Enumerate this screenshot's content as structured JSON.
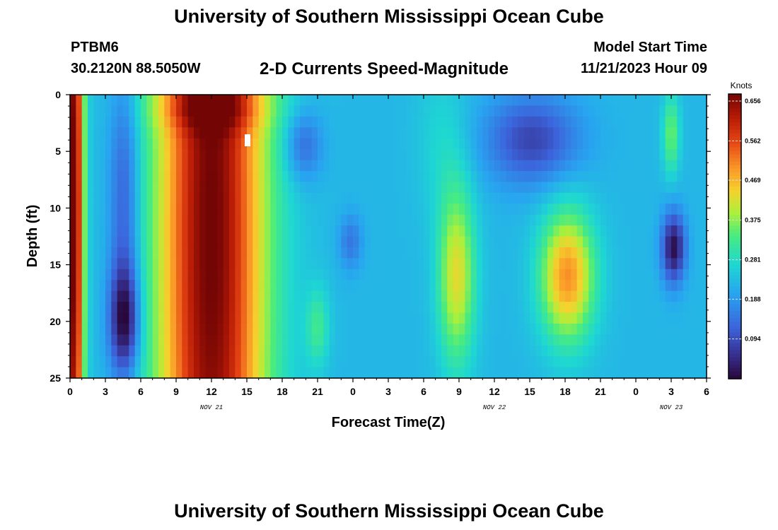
{
  "header": {
    "title": "University of Southern Mississippi Ocean Cube",
    "station": "PTBM6",
    "coords": "30.2120N  88.5050W",
    "subtitle": "2-D Currents Speed-Magnitude",
    "model_start_label": "Model Start Time",
    "model_start_value": "11/21/2023 Hour 09"
  },
  "footer": {
    "title": "University of Southern Mississippi Ocean Cube"
  },
  "chart_data": {
    "type": "heatmap",
    "title": "2-D Currents Speed-Magnitude",
    "xlabel": "Forecast Time(Z)",
    "ylabel": "Depth (ft)",
    "x_hours_range": [
      0,
      54
    ],
    "ylim": [
      0,
      25
    ],
    "x_tick_labels": [
      "0",
      "3",
      "6",
      "9",
      "12",
      "15",
      "18",
      "21",
      "0",
      "3",
      "6",
      "9",
      "12",
      "15",
      "18",
      "21",
      "0",
      "3",
      "6"
    ],
    "y_tick_labels": [
      "0",
      "5",
      "10",
      "15",
      "20",
      "25"
    ],
    "date_labels": [
      {
        "text": "NOV 21",
        "hour": 12
      },
      {
        "text": "NOV 22",
        "hour": 36
      },
      {
        "text": "NOV 23",
        "hour": 51
      }
    ],
    "colorbar": {
      "units": "Knots",
      "tick_labels": [
        "0.656",
        "0.562",
        "0.469",
        "0.375",
        "0.281",
        "0.188",
        "0.094"
      ],
      "min": 0.0,
      "max": 0.656
    },
    "background": 0.22,
    "features": [
      {
        "t": 0.3,
        "d": 10,
        "st": 0.6,
        "sd": 30,
        "v": 0.45
      },
      {
        "t": 4.6,
        "d": 20,
        "st": 0.9,
        "sd": 3.5,
        "v": -0.21
      },
      {
        "t": 4.6,
        "d": 9,
        "st": 0.9,
        "sd": 8,
        "v": -0.12
      },
      {
        "t": 12.0,
        "d": 12,
        "st": 3.2,
        "sd": 40,
        "v": 0.44
      },
      {
        "t": 12.0,
        "d": 1,
        "st": 3.2,
        "sd": 1.5,
        "v": 0.1
      },
      {
        "t": 19.8,
        "d": 4.5,
        "st": 1.1,
        "sd": 2.2,
        "v": -0.1
      },
      {
        "t": 23.8,
        "d": 13,
        "st": 0.7,
        "sd": 1.7,
        "v": -0.08
      },
      {
        "t": 21.0,
        "d": 20.5,
        "st": 0.7,
        "sd": 2.5,
        "v": 0.09
      },
      {
        "t": 32.8,
        "d": 16,
        "st": 1.1,
        "sd": 5.5,
        "v": 0.2
      },
      {
        "t": 31.5,
        "d": 4,
        "st": 1.5,
        "sd": 5,
        "v": 0.04
      },
      {
        "t": 39.2,
        "d": 4,
        "st": 2.8,
        "sd": 2.8,
        "v": -0.14
      },
      {
        "t": 42.2,
        "d": 16,
        "st": 1.6,
        "sd": 4,
        "v": 0.27
      },
      {
        "t": 51.2,
        "d": 13.5,
        "st": 0.7,
        "sd": 2.2,
        "v": -0.21
      },
      {
        "t": 51.0,
        "d": 3.5,
        "st": 0.5,
        "sd": 2.5,
        "v": 0.13
      }
    ]
  }
}
